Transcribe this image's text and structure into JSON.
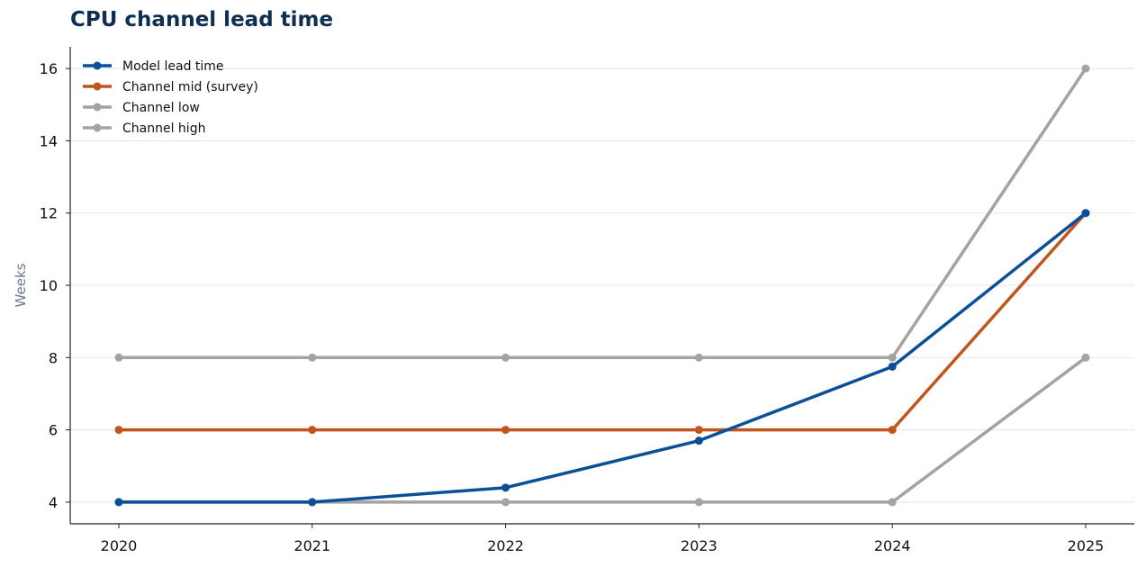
{
  "chart_data": {
    "type": "line",
    "title": "CPU channel lead time",
    "xlabel": "",
    "ylabel": "Weeks",
    "x": [
      "2020",
      "2021",
      "2022",
      "2023",
      "2024",
      "2025"
    ],
    "y_ticks": [
      4,
      6,
      8,
      10,
      12,
      14,
      16
    ],
    "ylim": [
      3.4,
      16.6
    ],
    "grid": "horizontal",
    "legend_position": "top-left",
    "series": [
      {
        "name": "Model lead time",
        "color": "#0b4f99",
        "values": [
          4,
          4,
          4.4,
          5.7,
          7.75,
          12
        ]
      },
      {
        "name": "Channel mid (survey)",
        "color": "#c0561b",
        "values": [
          6,
          6,
          6,
          6,
          6,
          12
        ]
      },
      {
        "name": "Channel low",
        "color": "#a3a3a3",
        "values": [
          4,
          4,
          4,
          4,
          4,
          8
        ]
      },
      {
        "name": "Channel high",
        "color": "#a3a3a3",
        "values": [
          8,
          8,
          8,
          8,
          8,
          16
        ]
      }
    ]
  }
}
